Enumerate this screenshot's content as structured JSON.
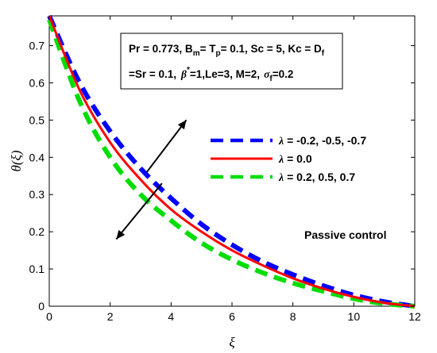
{
  "chart_data": {
    "type": "line",
    "title": "",
    "xlabel": "ξ",
    "ylabel": "θ(ξ)",
    "xlim": [
      0,
      12
    ],
    "ylim": [
      0,
      0.78
    ],
    "x_ticks": [
      "0",
      "2",
      "4",
      "6",
      "8",
      "10",
      "12"
    ],
    "y_ticks": [
      "0",
      "0.1",
      "0.2",
      "0.3",
      "0.4",
      "0.5",
      "0.6",
      "0.7"
    ],
    "grid": false,
    "legend_position": "center-right",
    "parameters": {
      "line1": "Pr = 0.773, B",
      "line1_sub1": "m",
      "line1_mid": "= T",
      "line1_sub2": "p",
      "line1_end": "= 0.1, Sc = 5, Kc = D",
      "line1_sub3": "f",
      "line2_start": "=Sr = 0.1,",
      "line2_beta": "β",
      "line2_star": "*",
      "line2_mid": "=1,Le=3, M=2,",
      "line2_sigma": "σ",
      "line2_sub": "f",
      "line2_end": "=0.2"
    },
    "annotation": "Passive control",
    "series": [
      {
        "name": "λ = -0.2, -0.5, -0.7",
        "label_symbol": "λ",
        "label_rest": " = -0.2, -0.5, -0.7",
        "color": "#0000ff",
        "style": "dashed",
        "x": [
          0,
          1,
          2,
          3,
          4,
          5,
          6,
          7,
          8,
          9,
          10,
          11,
          12
        ],
        "y": [
          0.78,
          0.6,
          0.47,
          0.37,
          0.29,
          0.22,
          0.165,
          0.12,
          0.085,
          0.055,
          0.03,
          0.012,
          0.0
        ]
      },
      {
        "name": "λ = 0.0",
        "label_symbol": "λ",
        "label_rest": " = 0.0",
        "color": "#ff0000",
        "style": "solid",
        "x": [
          0,
          1,
          2,
          3,
          4,
          5,
          6,
          7,
          8,
          9,
          10,
          11,
          12
        ],
        "y": [
          0.78,
          0.58,
          0.44,
          0.34,
          0.26,
          0.2,
          0.15,
          0.11,
          0.075,
          0.047,
          0.025,
          0.009,
          0.0
        ]
      },
      {
        "name": "λ = 0.2, 0.5, 0.7",
        "label_symbol": "λ",
        "label_rest": " = 0.2, 0.5, 0.7",
        "color": "#00dd00",
        "style": "dashed",
        "x": [
          0,
          1,
          2,
          3,
          4,
          5,
          6,
          7,
          8,
          9,
          10,
          11,
          12
        ],
        "y": [
          0.77,
          0.55,
          0.4,
          0.3,
          0.23,
          0.17,
          0.125,
          0.09,
          0.062,
          0.04,
          0.02,
          0.007,
          0.0
        ]
      }
    ],
    "arrows": [
      {
        "from": [
          3.2,
          0.36
        ],
        "to": [
          4.5,
          0.5
        ]
      },
      {
        "from": [
          3.7,
          0.33
        ],
        "to": [
          2.2,
          0.18
        ]
      }
    ]
  }
}
